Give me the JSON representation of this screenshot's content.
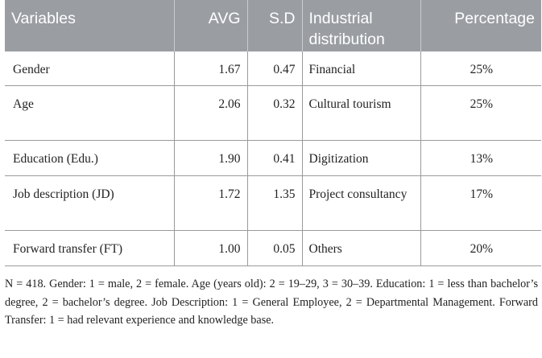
{
  "table": {
    "headers": [
      "Variables",
      "AVG",
      "S.D",
      "Industrial distribution",
      "Percentage"
    ],
    "rows": [
      {
        "variable": "Gender",
        "avg": "1.67",
        "sd": "0.47",
        "industry": "Financial",
        "percentage": "25%"
      },
      {
        "variable": "Age",
        "avg": "2.06",
        "sd": "0.32",
        "industry": "Cultural tourism",
        "percentage": "25%"
      },
      {
        "variable": "Education (Edu.)",
        "avg": "1.90",
        "sd": "0.41",
        "industry": "Digitization",
        "percentage": "13%"
      },
      {
        "variable": "Job description (JD)",
        "avg": "1.72",
        "sd": "1.35",
        "industry": "Project consultancy",
        "percentage": "17%"
      },
      {
        "variable": "Forward transfer (FT)",
        "avg": "1.00",
        "sd": "0.05",
        "industry": "Others",
        "percentage": "20%"
      }
    ]
  },
  "note": "N = 418. Gender: 1 = male, 2 = female. Age (years old): 2 = 19–29, 3 = 30–39. Education: 1 = less than bachelor’s degree, 2 = bachelor’s degree. Job Description: 1 = General Employee, 2 = Departmental Management. Forward Transfer: 1 = had relevant experience and knowledge base.",
  "colors": {
    "header_bg": "#9a9ea3",
    "header_text": "#ffffff",
    "body_text": "#222222",
    "rule": "#9a9a9a"
  }
}
